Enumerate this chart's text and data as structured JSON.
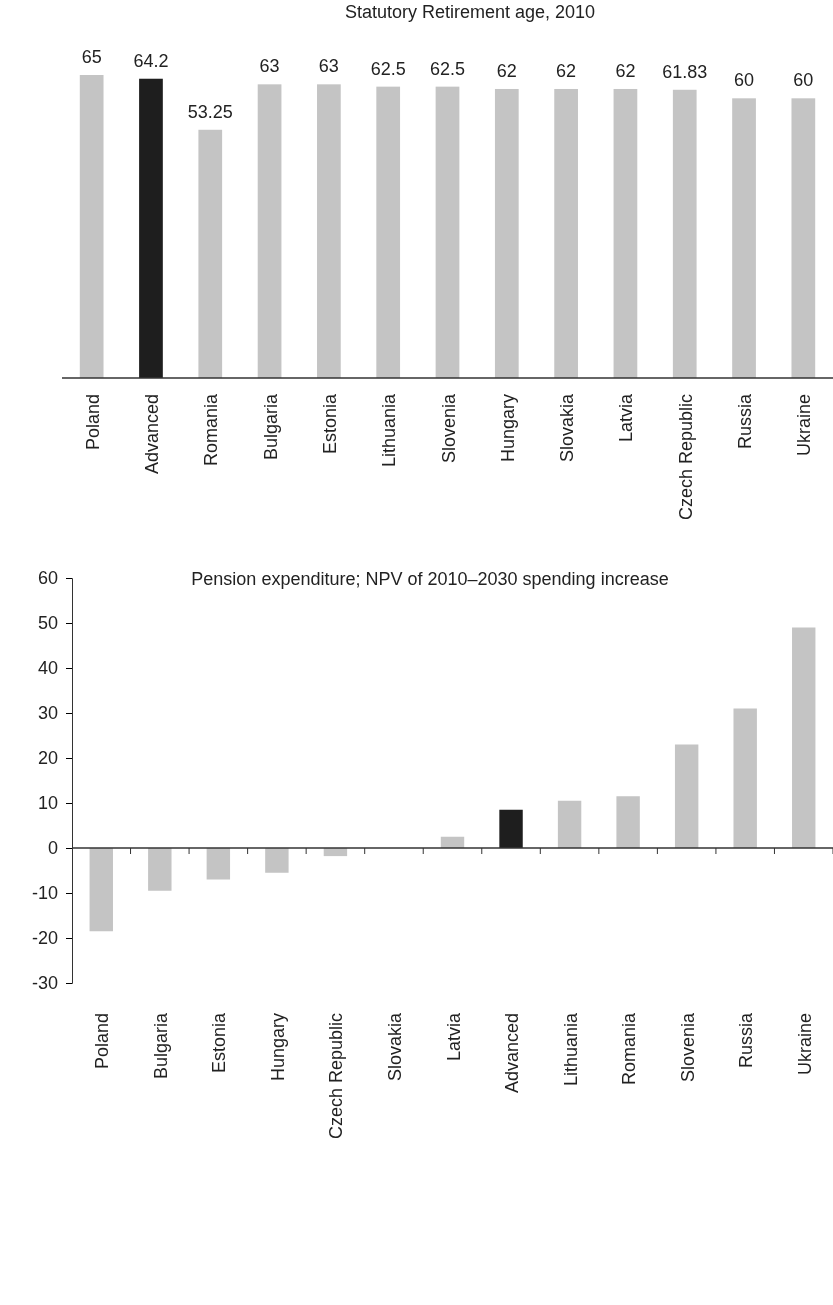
{
  "chart_data": [
    {
      "type": "bar",
      "title": "Statutory Retirement age, 2010",
      "categories": [
        "Poland",
        "Advanced",
        "Romania",
        "Bulgaria",
        "Estonia",
        "Lithuania",
        "Slovenia",
        "Hungary",
        "Slovakia",
        "Latvia",
        "Czech Republic",
        "Russia",
        "Ukraine"
      ],
      "values": [
        65,
        64.2,
        53.25,
        63,
        63,
        62.5,
        62.5,
        62,
        62,
        62,
        61.83,
        60,
        60
      ],
      "colors": [
        "#c4c4c4",
        "#1e1e1e",
        "#c4c4c4",
        "#c4c4c4",
        "#c4c4c4",
        "#c4c4c4",
        "#c4c4c4",
        "#c4c4c4",
        "#c4c4c4",
        "#c4c4c4",
        "#c4c4c4",
        "#c4c4c4",
        "#c4c4c4"
      ],
      "data_labels": true,
      "tick_labels": "x"
    },
    {
      "type": "bar",
      "title": "Pension expenditure; NPV of 2010–2030 spending increase",
      "categories": [
        "Poland",
        "Bulgaria",
        "Estonia",
        "Hungary",
        "Czech Republic",
        "Slovakia",
        "Latvia",
        "Advanced",
        "Lithuania",
        "Romania",
        "Slovenia",
        "Russia",
        "Ukraine"
      ],
      "values": [
        -18.5,
        -9.5,
        -7,
        -5.5,
        -1.8,
        0,
        2.5,
        8.5,
        10.5,
        11.5,
        23,
        31,
        49
      ],
      "colors": [
        "#c4c4c4",
        "#c4c4c4",
        "#c4c4c4",
        "#c4c4c4",
        "#c4c4c4",
        "#c4c4c4",
        "#c4c4c4",
        "#1e1e1e",
        "#c4c4c4",
        "#c4c4c4",
        "#c4c4c4",
        "#c4c4c4",
        "#c4c4c4"
      ],
      "ylim": [
        -30,
        60
      ],
      "yticks": [
        -30,
        -20,
        -10,
        0,
        10,
        20,
        30,
        40,
        50,
        60
      ]
    }
  ]
}
